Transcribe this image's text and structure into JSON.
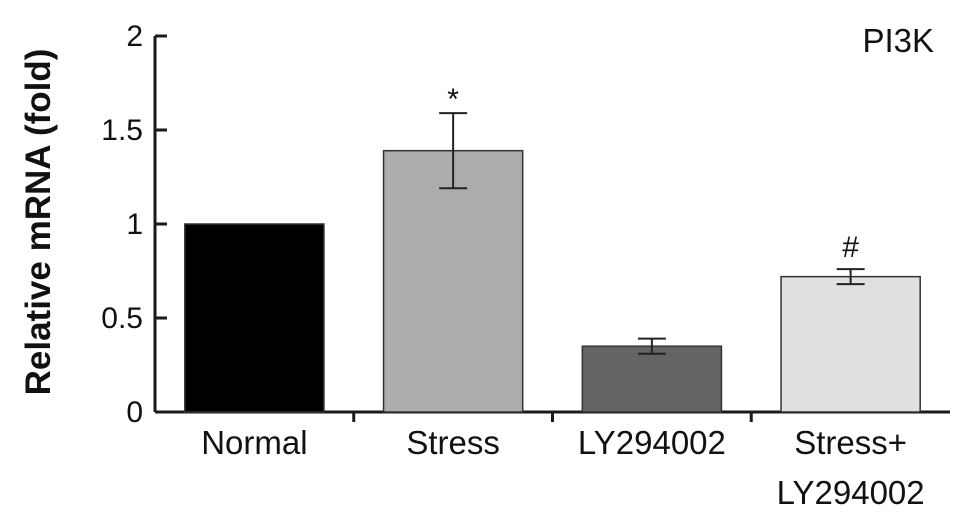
{
  "chart_data": {
    "type": "bar",
    "title": "PI3K",
    "ylabel": "Relative mRNA (fold)",
    "xlabel": "",
    "ylim": [
      0,
      2
    ],
    "yticks": [
      0,
      0.5,
      1,
      1.5,
      2
    ],
    "ytick_labels": [
      "0",
      "0.5",
      "1",
      "1.5",
      "2"
    ],
    "categories": [
      [
        "Normal"
      ],
      [
        "Stress"
      ],
      [
        "LY294002"
      ],
      [
        "Stress+",
        "LY294002"
      ]
    ],
    "values": [
      1.0,
      1.39,
      0.35,
      0.72
    ],
    "errors": [
      0,
      0.2,
      0.04,
      0.04
    ],
    "annotations": [
      "",
      "*",
      "",
      "#"
    ],
    "colors": [
      "#000000",
      "#acacac",
      "#646464",
      "#e0e0e0"
    ],
    "grid": false,
    "legend": "none"
  }
}
